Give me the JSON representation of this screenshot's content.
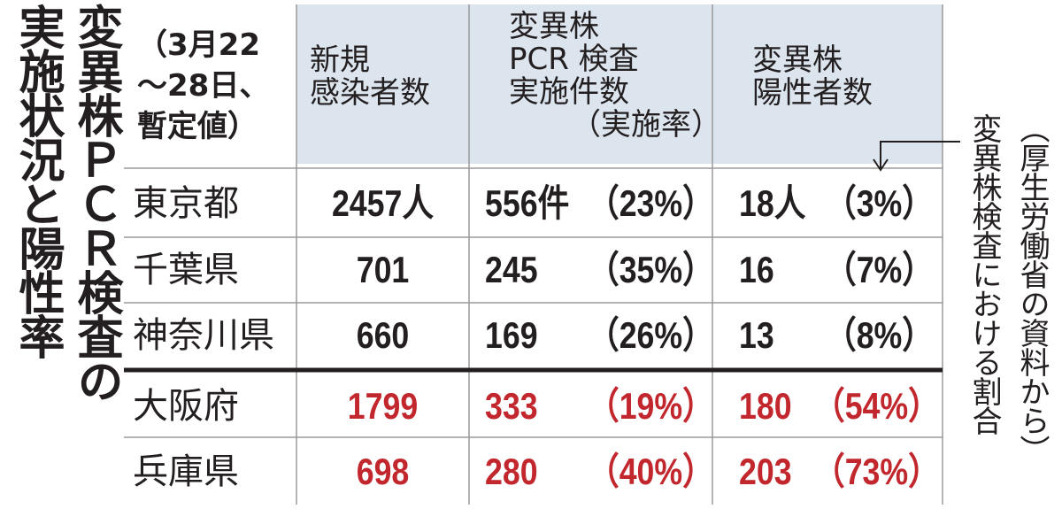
{
  "title": {
    "lines": [
      "変異株ＰＣＲ検査の",
      "実施状況と陽性率"
    ]
  },
  "period": {
    "lines": [
      "（3月22",
      "〜28日、",
      "暫定値）"
    ]
  },
  "headers": [
    {
      "lines": [
        "新規",
        "感染者数"
      ]
    },
    {
      "lines": [
        "変異株",
        "PCR 検査",
        "実施件数",
        "（実施率）"
      ]
    },
    {
      "lines": [
        "変異株",
        "陽性者数"
      ]
    }
  ],
  "rows": [
    {
      "name": "東京都",
      "cases": "2457人",
      "tests": "556件",
      "test_rate": "（23%）",
      "positives": "18人",
      "positive_rate": "（3%）"
    },
    {
      "name": "千葉県",
      "cases": "701",
      "tests": "245",
      "test_rate": "（35%）",
      "positives": "16",
      "positive_rate": "（7%）"
    },
    {
      "name": "神奈川県",
      "cases": "660",
      "tests": "169",
      "test_rate": "（26%）",
      "positives": "13",
      "positive_rate": "（8%）"
    },
    {
      "name": "大阪府",
      "cases": "1799",
      "tests": "333",
      "test_rate": "（19%）",
      "positives": "180",
      "positive_rate": "（54%）"
    },
    {
      "name": "兵庫県",
      "cases": "698",
      "tests": "280",
      "test_rate": "（40%）",
      "positives": "203",
      "positive_rate": "（73%）"
    }
  ],
  "notes": {
    "annotation": "変異株検査における割合",
    "source": "（厚生労働省の資料から）"
  }
}
